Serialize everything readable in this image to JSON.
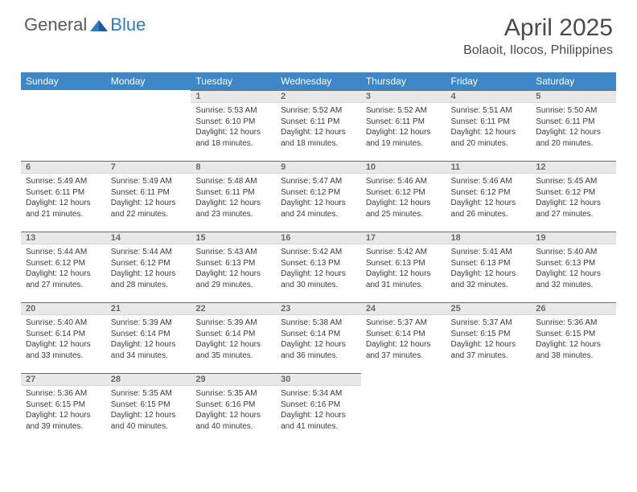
{
  "brand": {
    "part1": "General",
    "part2": "Blue"
  },
  "title": "April 2025",
  "location": "Bolaoit, Ilocos, Philippines",
  "colors": {
    "header_bg": "#3b87c8",
    "header_text": "#ffffff",
    "daynum_bg": "#e8e8e8",
    "daynum_border_top": "#6a6a6a",
    "body_text": "#3a3a3a",
    "brand_gray": "#5a5a5a",
    "brand_blue": "#2f7ac0"
  },
  "typography": {
    "title_fontsize": 30,
    "location_fontsize": 16,
    "dayheader_fontsize": 12,
    "daynum_fontsize": 11,
    "cell_fontsize": 10
  },
  "day_headers": [
    "Sunday",
    "Monday",
    "Tuesday",
    "Wednesday",
    "Thursday",
    "Friday",
    "Saturday"
  ],
  "weeks": [
    [
      null,
      null,
      {
        "n": "1",
        "sr": "Sunrise: 5:53 AM",
        "ss": "Sunset: 6:10 PM",
        "d1": "Daylight: 12 hours",
        "d2": "and 18 minutes."
      },
      {
        "n": "2",
        "sr": "Sunrise: 5:52 AM",
        "ss": "Sunset: 6:11 PM",
        "d1": "Daylight: 12 hours",
        "d2": "and 18 minutes."
      },
      {
        "n": "3",
        "sr": "Sunrise: 5:52 AM",
        "ss": "Sunset: 6:11 PM",
        "d1": "Daylight: 12 hours",
        "d2": "and 19 minutes."
      },
      {
        "n": "4",
        "sr": "Sunrise: 5:51 AM",
        "ss": "Sunset: 6:11 PM",
        "d1": "Daylight: 12 hours",
        "d2": "and 20 minutes."
      },
      {
        "n": "5",
        "sr": "Sunrise: 5:50 AM",
        "ss": "Sunset: 6:11 PM",
        "d1": "Daylight: 12 hours",
        "d2": "and 20 minutes."
      }
    ],
    [
      {
        "n": "6",
        "sr": "Sunrise: 5:49 AM",
        "ss": "Sunset: 6:11 PM",
        "d1": "Daylight: 12 hours",
        "d2": "and 21 minutes."
      },
      {
        "n": "7",
        "sr": "Sunrise: 5:49 AM",
        "ss": "Sunset: 6:11 PM",
        "d1": "Daylight: 12 hours",
        "d2": "and 22 minutes."
      },
      {
        "n": "8",
        "sr": "Sunrise: 5:48 AM",
        "ss": "Sunset: 6:11 PM",
        "d1": "Daylight: 12 hours",
        "d2": "and 23 minutes."
      },
      {
        "n": "9",
        "sr": "Sunrise: 5:47 AM",
        "ss": "Sunset: 6:12 PM",
        "d1": "Daylight: 12 hours",
        "d2": "and 24 minutes."
      },
      {
        "n": "10",
        "sr": "Sunrise: 5:46 AM",
        "ss": "Sunset: 6:12 PM",
        "d1": "Daylight: 12 hours",
        "d2": "and 25 minutes."
      },
      {
        "n": "11",
        "sr": "Sunrise: 5:46 AM",
        "ss": "Sunset: 6:12 PM",
        "d1": "Daylight: 12 hours",
        "d2": "and 26 minutes."
      },
      {
        "n": "12",
        "sr": "Sunrise: 5:45 AM",
        "ss": "Sunset: 6:12 PM",
        "d1": "Daylight: 12 hours",
        "d2": "and 27 minutes."
      }
    ],
    [
      {
        "n": "13",
        "sr": "Sunrise: 5:44 AM",
        "ss": "Sunset: 6:12 PM",
        "d1": "Daylight: 12 hours",
        "d2": "and 27 minutes."
      },
      {
        "n": "14",
        "sr": "Sunrise: 5:44 AM",
        "ss": "Sunset: 6:12 PM",
        "d1": "Daylight: 12 hours",
        "d2": "and 28 minutes."
      },
      {
        "n": "15",
        "sr": "Sunrise: 5:43 AM",
        "ss": "Sunset: 6:13 PM",
        "d1": "Daylight: 12 hours",
        "d2": "and 29 minutes."
      },
      {
        "n": "16",
        "sr": "Sunrise: 5:42 AM",
        "ss": "Sunset: 6:13 PM",
        "d1": "Daylight: 12 hours",
        "d2": "and 30 minutes."
      },
      {
        "n": "17",
        "sr": "Sunrise: 5:42 AM",
        "ss": "Sunset: 6:13 PM",
        "d1": "Daylight: 12 hours",
        "d2": "and 31 minutes."
      },
      {
        "n": "18",
        "sr": "Sunrise: 5:41 AM",
        "ss": "Sunset: 6:13 PM",
        "d1": "Daylight: 12 hours",
        "d2": "and 32 minutes."
      },
      {
        "n": "19",
        "sr": "Sunrise: 5:40 AM",
        "ss": "Sunset: 6:13 PM",
        "d1": "Daylight: 12 hours",
        "d2": "and 32 minutes."
      }
    ],
    [
      {
        "n": "20",
        "sr": "Sunrise: 5:40 AM",
        "ss": "Sunset: 6:14 PM",
        "d1": "Daylight: 12 hours",
        "d2": "and 33 minutes."
      },
      {
        "n": "21",
        "sr": "Sunrise: 5:39 AM",
        "ss": "Sunset: 6:14 PM",
        "d1": "Daylight: 12 hours",
        "d2": "and 34 minutes."
      },
      {
        "n": "22",
        "sr": "Sunrise: 5:39 AM",
        "ss": "Sunset: 6:14 PM",
        "d1": "Daylight: 12 hours",
        "d2": "and 35 minutes."
      },
      {
        "n": "23",
        "sr": "Sunrise: 5:38 AM",
        "ss": "Sunset: 6:14 PM",
        "d1": "Daylight: 12 hours",
        "d2": "and 36 minutes."
      },
      {
        "n": "24",
        "sr": "Sunrise: 5:37 AM",
        "ss": "Sunset: 6:14 PM",
        "d1": "Daylight: 12 hours",
        "d2": "and 37 minutes."
      },
      {
        "n": "25",
        "sr": "Sunrise: 5:37 AM",
        "ss": "Sunset: 6:15 PM",
        "d1": "Daylight: 12 hours",
        "d2": "and 37 minutes."
      },
      {
        "n": "26",
        "sr": "Sunrise: 5:36 AM",
        "ss": "Sunset: 6:15 PM",
        "d1": "Daylight: 12 hours",
        "d2": "and 38 minutes."
      }
    ],
    [
      {
        "n": "27",
        "sr": "Sunrise: 5:36 AM",
        "ss": "Sunset: 6:15 PM",
        "d1": "Daylight: 12 hours",
        "d2": "and 39 minutes."
      },
      {
        "n": "28",
        "sr": "Sunrise: 5:35 AM",
        "ss": "Sunset: 6:15 PM",
        "d1": "Daylight: 12 hours",
        "d2": "and 40 minutes."
      },
      {
        "n": "29",
        "sr": "Sunrise: 5:35 AM",
        "ss": "Sunset: 6:16 PM",
        "d1": "Daylight: 12 hours",
        "d2": "and 40 minutes."
      },
      {
        "n": "30",
        "sr": "Sunrise: 5:34 AM",
        "ss": "Sunset: 6:16 PM",
        "d1": "Daylight: 12 hours",
        "d2": "and 41 minutes."
      },
      null,
      null,
      null
    ]
  ]
}
